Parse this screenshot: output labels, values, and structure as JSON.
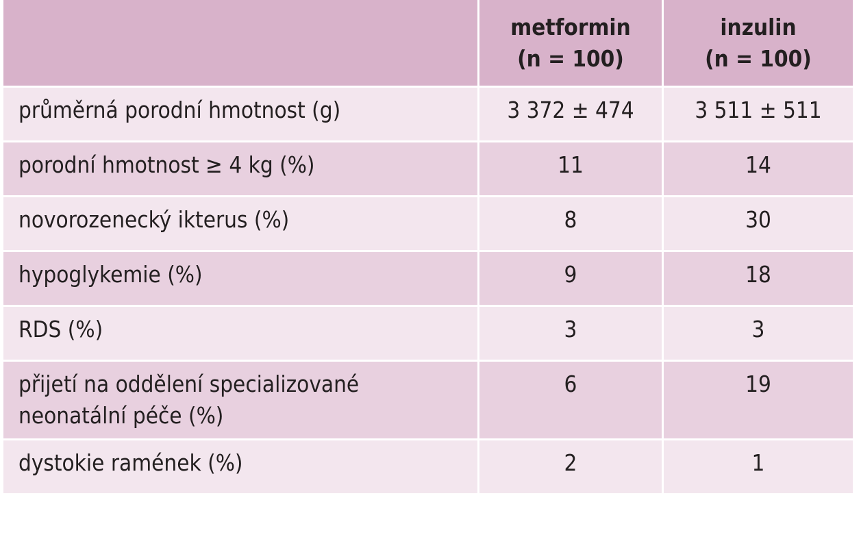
{
  "table": {
    "header": [
      {
        "name": "metformin",
        "n": "(n = 100)"
      },
      {
        "name": "inzulin",
        "n": "(n = 100)"
      }
    ],
    "rows": [
      [
        "průměrná porodní hmotnost (g)",
        "3 372 ± 474",
        "3 511 ± 511"
      ],
      [
        "porodní hmotnost ≥ 4 kg (%)",
        "11",
        "14"
      ],
      [
        "novorozenecký ikterus (%)",
        "8",
        "30"
      ],
      [
        "hypoglykemie (%)",
        "9",
        "18"
      ],
      [
        "RDS (%)",
        "3",
        "3"
      ],
      [
        "přijetí na oddělení specializované neonatální péče (%)",
        "6",
        "19"
      ],
      [
        "dystokie ramének (%)",
        "2",
        "1"
      ]
    ]
  }
}
